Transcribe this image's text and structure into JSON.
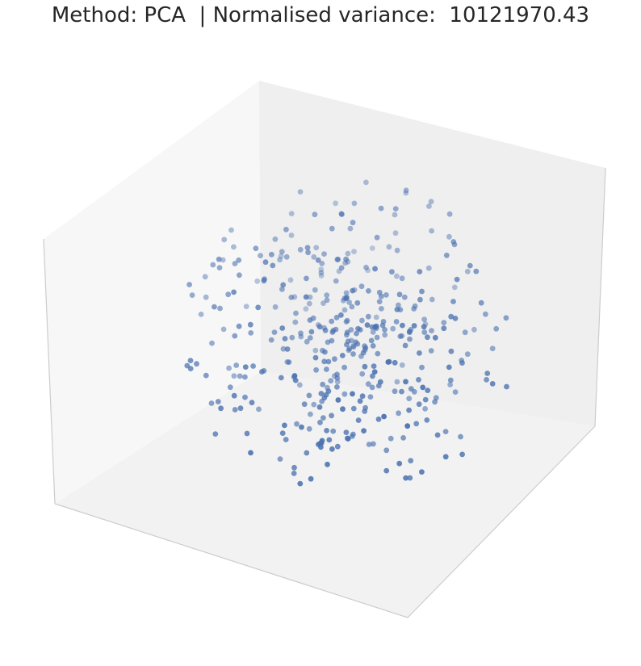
{
  "figure": {
    "title": "Method: PCA  | Normalised variance:  10121970.43"
  },
  "colors": {
    "point": "#4c72b0",
    "pane_left": "#f7f7f7",
    "pane_back": "#efefef",
    "pane_floor": "#f2f2f2",
    "pane_edge": "#cccccc"
  },
  "chart_data": {
    "type": "scatter",
    "projection": "3d",
    "title": "Method: PCA  | Normalised variance:  10121970.43",
    "xlabel": "",
    "ylabel": "",
    "zlabel": "",
    "ticks": "none",
    "grid": false,
    "n_points": 420,
    "point_distribution": "roughly spherical cloud, about 3.2 units across, centered near the origin",
    "points": []
  }
}
